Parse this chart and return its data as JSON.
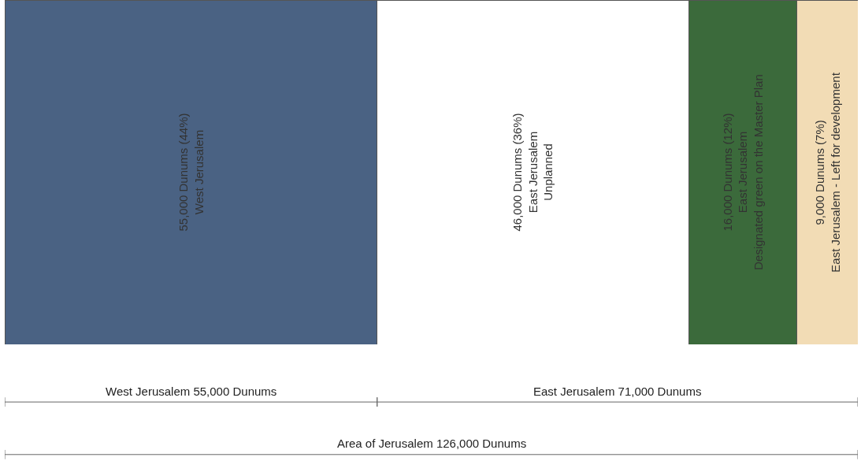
{
  "chart_data": {
    "type": "bar",
    "orientation": "horizontal",
    "stacked": true,
    "categories": [
      null
    ],
    "xlim": [
      0,
      126000
    ],
    "series": [
      {
        "color": "#4a6283",
        "values": [
          55000
        ],
        "value_labels": [
          "55,000 Dunums (44%)\nWest Jerusalem"
        ]
      },
      {
        "color": "#ffffff",
        "values": [
          46000
        ],
        "value_labels": [
          "46,000 Dunums (36%)\nEast Jerusalem\nUnplanned"
        ]
      },
      {
        "color": "#3b6a3b",
        "values": [
          16000
        ],
        "value_labels": [
          "16,000 Dunums (12%)\nEast Jerusalem\nDesignated green on the Master Plan"
        ]
      },
      {
        "color": "#f2dcb5",
        "values": [
          9000
        ],
        "value_labels": [
          "9,000 Dunums (7%)\nEast Jerusalem - Left for development"
        ]
      }
    ],
    "annotations": [
      "West Jerusalem 55,000 Dunums",
      "East Jerusalem 71,000 Dunums",
      "Area of Jerusalem 126,000 Dunums"
    ]
  }
}
